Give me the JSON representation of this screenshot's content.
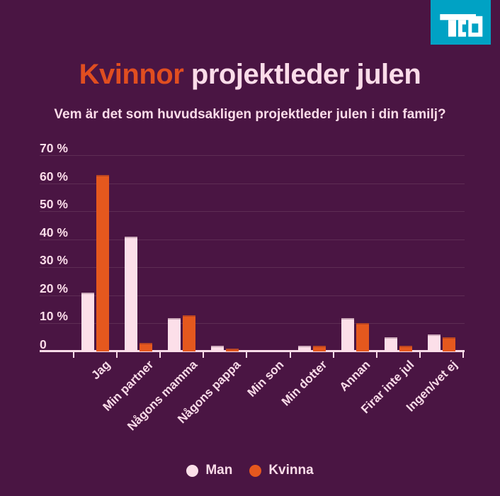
{
  "logo": {
    "name": "TCO",
    "bg_color": "#00a2c4",
    "glyph_color": "#ffffff"
  },
  "header": {
    "title_accent": "Kvinnor",
    "title_rest": "projektleder julen",
    "subtitle": "Vem är det som huvudsakligen projektleder julen i din familj?"
  },
  "colors": {
    "background": "#4a1543",
    "title_orange": "#e04e20",
    "text_pink": "#fbdce9",
    "bar_pink": "#fcdfe9",
    "bar_orange": "#e5581e",
    "gridline": "#5e2d54",
    "axis": "#f9dce8"
  },
  "chart_data": {
    "type": "bar",
    "title": "Kvinnor projektleder julen",
    "subtitle": "Vem är det som huvudsakligen projektleder julen i din familj?",
    "categories": [
      "Jag",
      "Min partner",
      "Någons mamma",
      "Någons pappa",
      "Min son",
      "Min dotter",
      "Annan",
      "Firar inte jul",
      "Ingen/vet ej"
    ],
    "series": [
      {
        "name": "Man",
        "color": "#fcdfe9",
        "values": [
          21,
          41,
          12,
          2,
          0,
          2,
          12,
          5,
          6
        ]
      },
      {
        "name": "Kvinna",
        "color": "#e5581e",
        "values": [
          63,
          3,
          13,
          1,
          0,
          2,
          10,
          2,
          5
        ]
      }
    ],
    "yticks": [
      {
        "label": "70 %",
        "value": 70
      },
      {
        "label": "60 %",
        "value": 60
      },
      {
        "label": "50 %",
        "value": 50
      },
      {
        "label": "40 %",
        "value": 40
      },
      {
        "label": "30 %",
        "value": 30
      },
      {
        "label": "20 %",
        "value": 20
      },
      {
        "label": "10 %",
        "value": 10
      },
      {
        "label": "0",
        "value": 0
      }
    ],
    "ylim": [
      0,
      70
    ],
    "xlabel": "",
    "ylabel": "",
    "grid": true,
    "legend_position": "bottom"
  },
  "legend": {
    "items": [
      {
        "label": "Man",
        "color": "#fcdfe9"
      },
      {
        "label": "Kvinna",
        "color": "#e5581e"
      }
    ]
  }
}
